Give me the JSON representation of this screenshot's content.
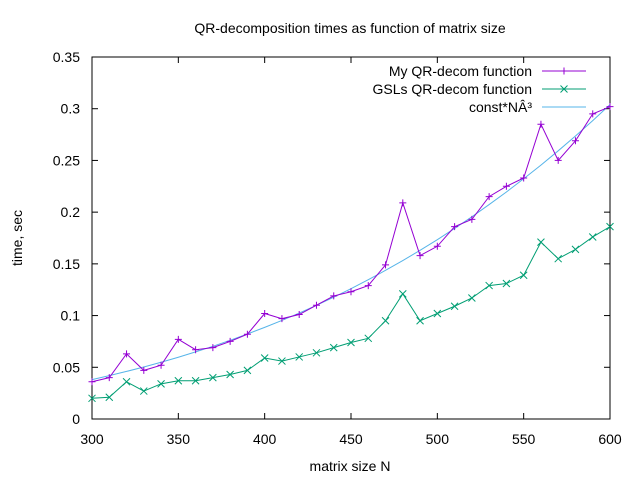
{
  "chart_data": {
    "type": "line",
    "title": "QR-decomposition times as function of matrix size",
    "xlabel": "matrix size N",
    "ylabel": "time, sec",
    "xlim": [
      300,
      600
    ],
    "ylim": [
      0,
      0.35
    ],
    "xticks": [
      "300",
      "350",
      "400",
      "450",
      "500",
      "550",
      "600"
    ],
    "yticks": [
      "0",
      "0.05",
      "0.1",
      "0.15",
      "0.2",
      "0.25",
      "0.3",
      "0.35"
    ],
    "grid": false,
    "legend_position": "top-right",
    "x": [
      300,
      310,
      320,
      330,
      340,
      350,
      360,
      370,
      380,
      390,
      400,
      410,
      420,
      430,
      440,
      450,
      460,
      470,
      480,
      490,
      500,
      510,
      520,
      530,
      540,
      550,
      560,
      570,
      580,
      590,
      600
    ],
    "series": [
      {
        "name": "My QR-decom function",
        "color": "#9400d3",
        "marker": "plus",
        "values": [
          0.036,
          0.04,
          0.063,
          0.047,
          0.052,
          0.077,
          0.067,
          0.069,
          0.075,
          0.082,
          0.102,
          0.097,
          0.101,
          0.11,
          0.119,
          0.123,
          0.129,
          0.149,
          0.209,
          0.158,
          0.167,
          0.186,
          0.193,
          0.215,
          0.225,
          0.233,
          0.285,
          0.25,
          0.269,
          0.295,
          0.302
        ]
      },
      {
        "name": "GSLs QR-decom function",
        "color": "#009e73",
        "marker": "cross",
        "values": [
          0.02,
          0.021,
          0.036,
          0.027,
          0.034,
          0.037,
          0.037,
          0.04,
          0.043,
          0.047,
          0.059,
          0.056,
          0.06,
          0.064,
          0.069,
          0.074,
          0.078,
          0.095,
          0.121,
          0.095,
          0.102,
          0.109,
          0.117,
          0.129,
          0.131,
          0.139,
          0.171,
          0.155,
          0.164,
          0.176,
          0.186
        ]
      },
      {
        "name": "const*NÂ³",
        "color": "#56b4e9",
        "marker": "none",
        "fit": "cubic",
        "values": [
          0.0381,
          0.0419,
          0.046,
          0.0503,
          0.0549,
          0.0597,
          0.0649,
          0.0703,
          0.0761,
          0.0822,
          0.0886,
          0.0953,
          0.1024,
          0.1099,
          0.1178,
          0.126,
          0.1347,
          0.1437,
          0.1532,
          0.1631,
          0.1734,
          0.1842,
          0.1955,
          0.2073,
          0.2195,
          0.2323,
          0.2455,
          0.2593,
          0.2736,
          0.2885,
          0.3039
        ]
      }
    ]
  }
}
